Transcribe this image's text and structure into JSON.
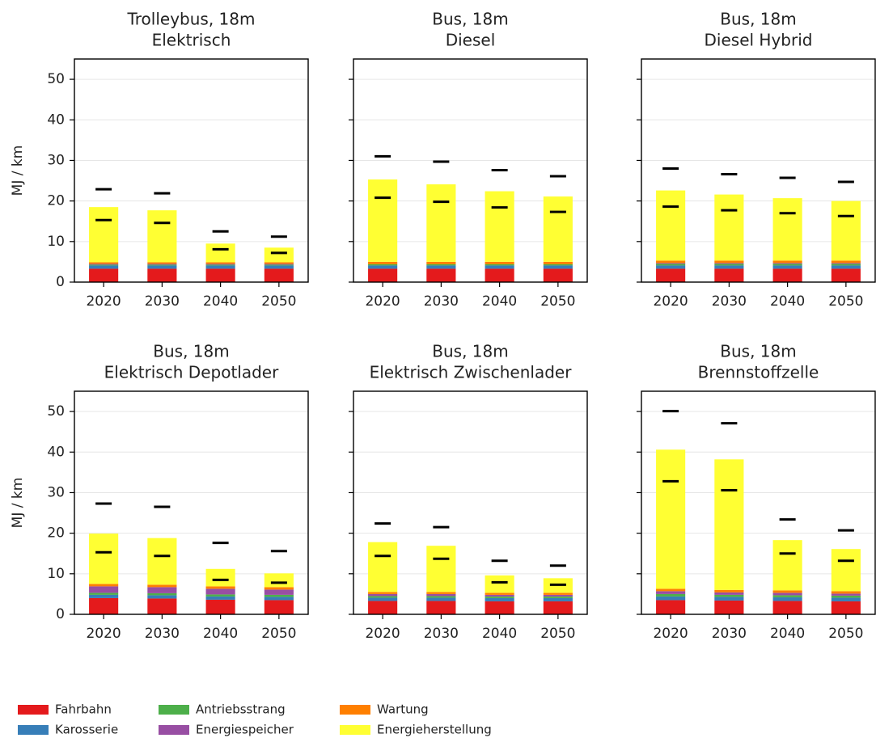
{
  "chart_data": [
    {
      "type": "bar",
      "stacked": true,
      "title": "Trolleybus, 18m",
      "subtitle": "Elektrisch",
      "ylabel": "MJ / km",
      "categories": [
        "2020",
        "2030",
        "2040",
        "2050"
      ],
      "ylim": [
        0,
        55
      ],
      "yticks": [
        0,
        10,
        20,
        30,
        40,
        50
      ],
      "grid": true,
      "series": [
        {
          "name": "Fahrbahn",
          "color": "#e41a1c",
          "values": [
            3.3,
            3.3,
            3.3,
            3.3
          ]
        },
        {
          "name": "Karosserie",
          "color": "#377eb8",
          "values": [
            0.8,
            0.8,
            0.8,
            0.8
          ]
        },
        {
          "name": "Antriebsstrang",
          "color": "#4daf4a",
          "values": [
            0.2,
            0.2,
            0.2,
            0.2
          ]
        },
        {
          "name": "Energiespeicher",
          "color": "#984ea3",
          "values": [
            0.2,
            0.2,
            0.2,
            0.2
          ]
        },
        {
          "name": "Wartung",
          "color": "#ff7f00",
          "values": [
            0.4,
            0.4,
            0.4,
            0.4
          ]
        },
        {
          "name": "Energieherstellung",
          "color": "#ffff33",
          "values": [
            13.6,
            12.8,
            4.6,
            3.6
          ]
        }
      ],
      "upper": [
        22.9,
        21.9,
        12.5,
        11.2
      ],
      "lower": [
        15.3,
        14.6,
        8.1,
        7.2
      ]
    },
    {
      "type": "bar",
      "stacked": true,
      "title": "Bus, 18m",
      "subtitle": "Diesel",
      "categories": [
        "2020",
        "2030",
        "2040",
        "2050"
      ],
      "ylim": [
        0,
        55
      ],
      "yticks": [
        0,
        10,
        20,
        30,
        40,
        50
      ],
      "grid": true,
      "series": [
        {
          "name": "Fahrbahn",
          "color": "#e41a1c",
          "values": [
            3.3,
            3.3,
            3.3,
            3.3
          ]
        },
        {
          "name": "Karosserie",
          "color": "#377eb8",
          "values": [
            0.8,
            0.8,
            0.8,
            0.8
          ]
        },
        {
          "name": "Antriebsstrang",
          "color": "#4daf4a",
          "values": [
            0.3,
            0.3,
            0.3,
            0.3
          ]
        },
        {
          "name": "Energiespeicher",
          "color": "#984ea3",
          "values": [
            0,
            0,
            0,
            0
          ]
        },
        {
          "name": "Wartung",
          "color": "#ff7f00",
          "values": [
            0.6,
            0.6,
            0.6,
            0.6
          ]
        },
        {
          "name": "Energieherstellung",
          "color": "#ffff33",
          "values": [
            20.3,
            19.1,
            17.4,
            16.1
          ]
        }
      ],
      "upper": [
        31.0,
        29.7,
        27.6,
        26.1
      ],
      "lower": [
        20.8,
        19.8,
        18.4,
        17.3
      ]
    },
    {
      "type": "bar",
      "stacked": true,
      "title": "Bus, 18m",
      "subtitle": "Diesel Hybrid",
      "categories": [
        "2020",
        "2030",
        "2040",
        "2050"
      ],
      "ylim": [
        0,
        55
      ],
      "yticks": [
        0,
        10,
        20,
        30,
        40,
        50
      ],
      "grid": true,
      "series": [
        {
          "name": "Fahrbahn",
          "color": "#e41a1c",
          "values": [
            3.3,
            3.3,
            3.3,
            3.3
          ]
        },
        {
          "name": "Karosserie",
          "color": "#377eb8",
          "values": [
            0.8,
            0.8,
            0.8,
            0.8
          ]
        },
        {
          "name": "Antriebsstrang",
          "color": "#4daf4a",
          "values": [
            0.4,
            0.4,
            0.4,
            0.4
          ]
        },
        {
          "name": "Energiespeicher",
          "color": "#984ea3",
          "values": [
            0.2,
            0.2,
            0.2,
            0.2
          ]
        },
        {
          "name": "Wartung",
          "color": "#ff7f00",
          "values": [
            0.6,
            0.6,
            0.6,
            0.6
          ]
        },
        {
          "name": "Energieherstellung",
          "color": "#ffff33",
          "values": [
            17.3,
            16.3,
            15.4,
            14.7
          ]
        }
      ],
      "upper": [
        28.0,
        26.6,
        25.7,
        24.7
      ],
      "lower": [
        18.6,
        17.7,
        17.0,
        16.3
      ]
    },
    {
      "type": "bar",
      "stacked": true,
      "title": "Bus, 18m",
      "subtitle": "Elektrisch Depotlader",
      "ylabel": "MJ / km",
      "categories": [
        "2020",
        "2030",
        "2040",
        "2050"
      ],
      "ylim": [
        0,
        55
      ],
      "yticks": [
        0,
        10,
        20,
        30,
        40,
        50
      ],
      "grid": true,
      "series": [
        {
          "name": "Fahrbahn",
          "color": "#e41a1c",
          "values": [
            4.0,
            3.9,
            3.6,
            3.5
          ]
        },
        {
          "name": "Karosserie",
          "color": "#377eb8",
          "values": [
            0.8,
            0.8,
            0.8,
            0.8
          ]
        },
        {
          "name": "Antriebsstrang",
          "color": "#4daf4a",
          "values": [
            0.5,
            0.5,
            0.5,
            0.5
          ]
        },
        {
          "name": "Energiespeicher",
          "color": "#984ea3",
          "values": [
            1.6,
            1.5,
            1.4,
            1.3
          ]
        },
        {
          "name": "Wartung",
          "color": "#ff7f00",
          "values": [
            0.6,
            0.6,
            0.6,
            0.6
          ]
        },
        {
          "name": "Energieherstellung",
          "color": "#ffff33",
          "values": [
            12.4,
            11.5,
            4.3,
            3.4
          ]
        }
      ],
      "upper": [
        27.3,
        26.5,
        17.6,
        15.6
      ],
      "lower": [
        15.3,
        14.4,
        8.5,
        7.8
      ]
    },
    {
      "type": "bar",
      "stacked": true,
      "title": "Bus, 18m",
      "subtitle": "Elektrisch Zwischenlader",
      "categories": [
        "2020",
        "2030",
        "2040",
        "2050"
      ],
      "ylim": [
        0,
        55
      ],
      "yticks": [
        0,
        10,
        20,
        30,
        40,
        50
      ],
      "grid": true,
      "series": [
        {
          "name": "Fahrbahn",
          "color": "#e41a1c",
          "values": [
            3.3,
            3.3,
            3.2,
            3.2
          ]
        },
        {
          "name": "Karosserie",
          "color": "#377eb8",
          "values": [
            0.8,
            0.8,
            0.8,
            0.8
          ]
        },
        {
          "name": "Antriebsstrang",
          "color": "#4daf4a",
          "values": [
            0.4,
            0.4,
            0.4,
            0.4
          ]
        },
        {
          "name": "Energiespeicher",
          "color": "#984ea3",
          "values": [
            0.5,
            0.5,
            0.4,
            0.4
          ]
        },
        {
          "name": "Wartung",
          "color": "#ff7f00",
          "values": [
            0.5,
            0.5,
            0.5,
            0.5
          ]
        },
        {
          "name": "Energieherstellung",
          "color": "#ffff33",
          "values": [
            12.3,
            11.4,
            4.3,
            3.6
          ]
        }
      ],
      "upper": [
        22.4,
        21.5,
        13.2,
        12.0
      ],
      "lower": [
        14.4,
        13.7,
        7.9,
        7.3
      ]
    },
    {
      "type": "bar",
      "stacked": true,
      "title": "Bus, 18m",
      "subtitle": "Brennstoffzelle",
      "categories": [
        "2020",
        "2030",
        "2040",
        "2050"
      ],
      "ylim": [
        0,
        55
      ],
      "yticks": [
        0,
        10,
        20,
        30,
        40,
        50
      ],
      "grid": true,
      "series": [
        {
          "name": "Fahrbahn",
          "color": "#e41a1c",
          "values": [
            3.5,
            3.4,
            3.3,
            3.2
          ]
        },
        {
          "name": "Karosserie",
          "color": "#377eb8",
          "values": [
            0.9,
            0.9,
            0.9,
            0.9
          ]
        },
        {
          "name": "Antriebsstrang",
          "color": "#4daf4a",
          "values": [
            0.6,
            0.5,
            0.5,
            0.5
          ]
        },
        {
          "name": "Energiespeicher",
          "color": "#984ea3",
          "values": [
            0.7,
            0.6,
            0.6,
            0.5
          ]
        },
        {
          "name": "Wartung",
          "color": "#ff7f00",
          "values": [
            0.6,
            0.6,
            0.6,
            0.6
          ]
        },
        {
          "name": "Energieherstellung",
          "color": "#ffff33",
          "values": [
            34.3,
            32.2,
            12.4,
            10.4
          ]
        }
      ],
      "upper": [
        50.1,
        47.1,
        23.4,
        20.7
      ],
      "lower": [
        32.8,
        30.6,
        15.0,
        13.2
      ]
    }
  ]
}
